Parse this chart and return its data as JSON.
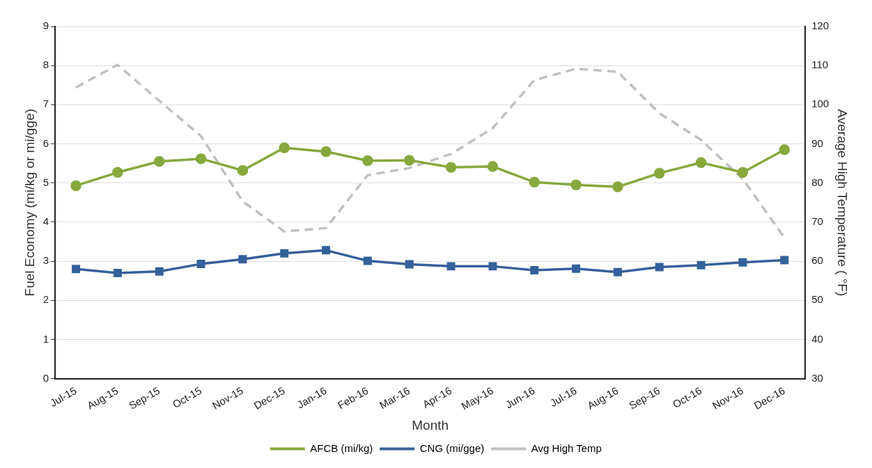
{
  "chart_data": {
    "type": "line",
    "xlabel": "Month",
    "ylabel": "Fuel Economy (mi/kg or mi/gge)",
    "y2label": "Average High Temperature ( °F)",
    "categories": [
      "Jul-15",
      "Aug-15",
      "Sep-15",
      "Oct-15",
      "Nov-15",
      "Dec-15",
      "Jan-16",
      "Feb-16",
      "Mar-16",
      "Apr-16",
      "May-16",
      "Jun-16",
      "Jul-16",
      "Aug-16",
      "Sep-16",
      "Oct-16",
      "Nov-16",
      "Dec-16"
    ],
    "series": [
      {
        "name": "AFCB (mi/kg)",
        "color": "#86a83c",
        "marker": "circle",
        "line_style": "solid",
        "values": [
          4.93,
          5.27,
          5.55,
          5.62,
          5.32,
          5.9,
          5.8,
          5.57,
          5.58,
          5.4,
          5.42,
          5.02,
          4.95,
          4.9,
          5.25,
          5.52,
          5.27,
          5.85
        ]
      },
      {
        "name": "CNG (mi/gge)",
        "color": "#34619a",
        "marker": "square",
        "line_style": "solid",
        "values": [
          2.8,
          2.7,
          2.74,
          2.93,
          3.05,
          3.2,
          3.28,
          3.01,
          2.92,
          2.87,
          2.87,
          2.77,
          2.81,
          2.72,
          2.85,
          2.9,
          2.97,
          3.03
        ]
      },
      {
        "name": "Avg High Temp",
        "color": "#c0c0c0",
        "marker": "none",
        "line_style": "dashed",
        "axis": "y2",
        "values": [
          104.4,
          110.2,
          101,
          92,
          75.3,
          67.6,
          68.5,
          82,
          83.8,
          87.4,
          94,
          106.3,
          109.2,
          108.4,
          97.8,
          91,
          81,
          66
        ]
      }
    ],
    "ylim": [
      0,
      9
    ],
    "yticks": [
      0,
      1,
      2,
      3,
      4,
      5,
      6,
      7,
      8,
      9
    ],
    "y2lim": [
      30,
      120
    ],
    "y2ticks": [
      30,
      40,
      50,
      60,
      70,
      80,
      90,
      100,
      110,
      120
    ],
    "grid": "y",
    "legend": "bottom"
  }
}
